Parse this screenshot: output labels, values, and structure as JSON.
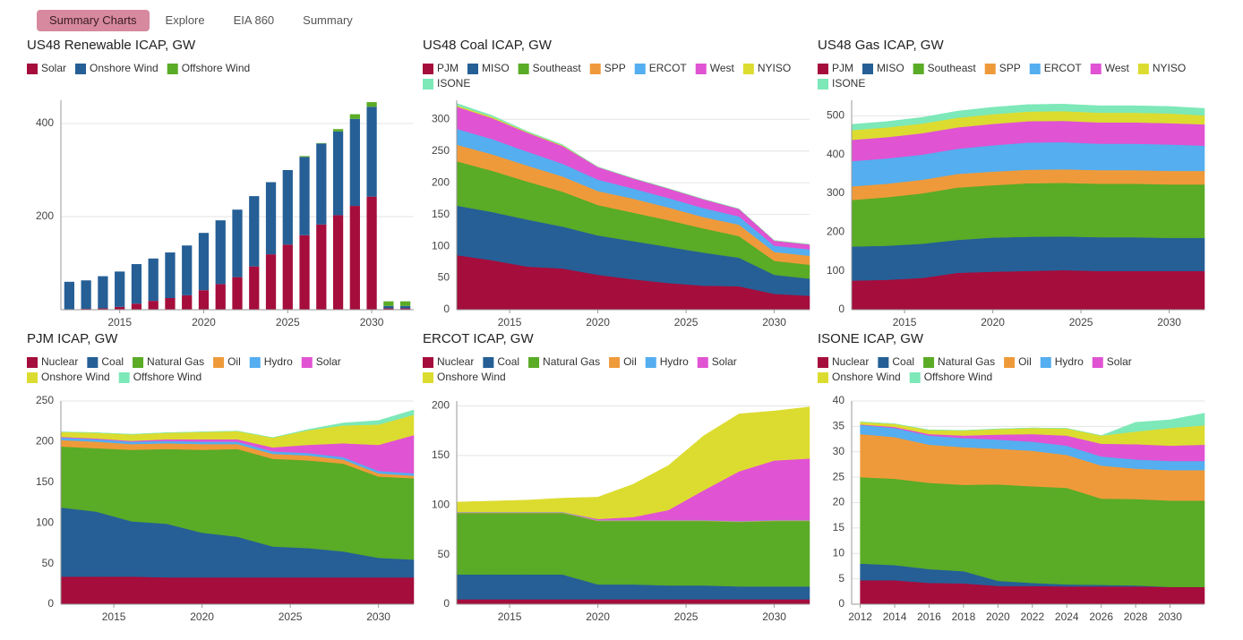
{
  "tabs": [
    "Summary Charts",
    "Explore",
    "EIA 860",
    "Summary"
  ],
  "chart_data": [
    {
      "type": "bar",
      "stacked": true,
      "title": "US48 Renewable ICAP, GW",
      "x": [
        2012,
        2013,
        2014,
        2015,
        2016,
        2017,
        2018,
        2019,
        2020,
        2021,
        2022,
        2023,
        2024,
        2025,
        2026,
        2027,
        2028,
        2029,
        2030,
        2031,
        2032
      ],
      "series": [
        {
          "name": "Solar",
          "color": "#a50d3c",
          "values": [
            1,
            2,
            3,
            6,
            13,
            19,
            25,
            31,
            42,
            55,
            70,
            93,
            119,
            140,
            160,
            183,
            203,
            223,
            243,
            3,
            3
          ]
        },
        {
          "name": "Onshore Wind",
          "color": "#255f96",
          "values": [
            59,
            61,
            69,
            76,
            85,
            91,
            98,
            107,
            123,
            137,
            145,
            151,
            155,
            160,
            168,
            174,
            180,
            187,
            193,
            5,
            5
          ]
        },
        {
          "name": "Offshore Wind",
          "color": "#5aab26",
          "values": [
            0,
            0,
            0,
            0,
            0,
            0,
            0,
            0,
            0,
            0,
            0,
            0,
            0,
            0,
            2,
            1,
            5,
            10,
            10,
            10,
            10
          ]
        }
      ],
      "xlim": [
        2011.5,
        2032.5
      ],
      "xticks": [
        2015,
        2020,
        2025,
        2030
      ],
      "ylim": [
        0,
        450
      ],
      "yticks": [
        200,
        400
      ],
      "grid": true
    },
    {
      "type": "area",
      "stacked": true,
      "title": "US48 Coal ICAP, GW",
      "x": [
        2012,
        2014,
        2016,
        2018,
        2020,
        2022,
        2024,
        2026,
        2028,
        2030,
        2032
      ],
      "series": [
        {
          "name": "PJM",
          "color": "#a50d3c",
          "values": [
            86,
            78,
            68,
            65,
            55,
            48,
            42,
            38,
            37,
            25,
            22
          ]
        },
        {
          "name": "MISO",
          "color": "#255f96",
          "values": [
            78,
            76,
            74,
            66,
            62,
            60,
            57,
            52,
            45,
            30,
            27
          ]
        },
        {
          "name": "Southeast",
          "color": "#5aab26",
          "values": [
            70,
            65,
            60,
            55,
            48,
            45,
            42,
            38,
            34,
            22,
            22
          ]
        },
        {
          "name": "SPP",
          "color": "#ef9a3a",
          "values": [
            26,
            26,
            25,
            24,
            22,
            22,
            20,
            18,
            18,
            14,
            14
          ]
        },
        {
          "name": "ERCOT",
          "color": "#54aef0",
          "values": [
            25,
            24,
            22,
            20,
            18,
            16,
            15,
            14,
            13,
            10,
            10
          ]
        },
        {
          "name": "West",
          "color": "#e053d3",
          "values": [
            35,
            33,
            30,
            28,
            20,
            16,
            15,
            14,
            12,
            8,
            8
          ]
        },
        {
          "name": "NYISO",
          "color": "#dcdc30",
          "values": [
            2,
            2,
            1,
            1,
            0,
            0,
            0,
            0,
            0,
            0,
            0
          ]
        },
        {
          "name": "ISONE",
          "color": "#7de8b8",
          "values": [
            3,
            2,
            1,
            1,
            0,
            0,
            0,
            0,
            0,
            0,
            0
          ]
        }
      ],
      "xlim": [
        2012,
        2032
      ],
      "xticks": [
        2015,
        2020,
        2025,
        2030
      ],
      "ylim": [
        0,
        330
      ],
      "yticks": [
        0,
        50,
        100,
        150,
        200,
        250,
        300
      ],
      "grid": true
    },
    {
      "type": "area",
      "stacked": true,
      "title": "US48 Gas ICAP, GW",
      "x": [
        2012,
        2014,
        2016,
        2018,
        2020,
        2022,
        2024,
        2026,
        2028,
        2030,
        2032
      ],
      "series": [
        {
          "name": "PJM",
          "color": "#a50d3c",
          "values": [
            75,
            77,
            82,
            95,
            98,
            100,
            102,
            100,
            100,
            100,
            100
          ]
        },
        {
          "name": "MISO",
          "color": "#255f96",
          "values": [
            88,
            88,
            88,
            85,
            88,
            88,
            87,
            87,
            87,
            85,
            85
          ]
        },
        {
          "name": "Southeast",
          "color": "#5aab26",
          "values": [
            120,
            125,
            130,
            135,
            135,
            138,
            138,
            138,
            138,
            138,
            138
          ]
        },
        {
          "name": "SPP",
          "color": "#ef9a3a",
          "values": [
            35,
            35,
            35,
            35,
            35,
            35,
            35,
            35,
            35,
            35,
            35
          ]
        },
        {
          "name": "ERCOT",
          "color": "#54aef0",
          "values": [
            65,
            65,
            65,
            65,
            68,
            70,
            70,
            68,
            68,
            68,
            65
          ]
        },
        {
          "name": "West",
          "color": "#e053d3",
          "values": [
            55,
            55,
            55,
            55,
            55,
            55,
            55,
            55,
            55,
            55,
            55
          ]
        },
        {
          "name": "NYISO",
          "color": "#dcdc30",
          "values": [
            25,
            25,
            25,
            25,
            25,
            25,
            25,
            25,
            25,
            25,
            23
          ]
        },
        {
          "name": "ISONE",
          "color": "#7de8b8",
          "values": [
            15,
            15,
            16,
            17,
            18,
            18,
            18,
            18,
            18,
            18,
            18
          ]
        }
      ],
      "xlim": [
        2012,
        2032
      ],
      "xticks": [
        2015,
        2020,
        2025,
        2030
      ],
      "ylim": [
        0,
        540
      ],
      "yticks": [
        0,
        100,
        200,
        300,
        400,
        500
      ],
      "grid": true
    },
    {
      "type": "area",
      "stacked": true,
      "title": "PJM ICAP, GW",
      "x": [
        2012,
        2014,
        2016,
        2018,
        2020,
        2022,
        2024,
        2026,
        2028,
        2030,
        2032
      ],
      "series": [
        {
          "name": "Nuclear",
          "color": "#a50d3c",
          "values": [
            34,
            34,
            34,
            33,
            33,
            33,
            33,
            33,
            33,
            33,
            33
          ]
        },
        {
          "name": "Coal",
          "color": "#255f96",
          "values": [
            85,
            80,
            68,
            66,
            55,
            50,
            38,
            36,
            32,
            24,
            22
          ]
        },
        {
          "name": "Natural Gas",
          "color": "#5aab26",
          "values": [
            75,
            78,
            88,
            92,
            102,
            108,
            108,
            108,
            108,
            100,
            100
          ]
        },
        {
          "name": "Oil",
          "color": "#ef9a3a",
          "values": [
            8,
            8,
            7,
            7,
            7,
            6,
            6,
            6,
            5,
            4,
            3
          ]
        },
        {
          "name": "Hydro",
          "color": "#54aef0",
          "values": [
            3,
            3,
            3,
            3,
            3,
            3,
            3,
            3,
            3,
            3,
            3
          ]
        },
        {
          "name": "Solar",
          "color": "#e053d3",
          "values": [
            1,
            1,
            1,
            2,
            3,
            3,
            5,
            10,
            17,
            32,
            47
          ]
        },
        {
          "name": "Onshore Wind",
          "color": "#dcdc30",
          "values": [
            6,
            7,
            8,
            8,
            9,
            10,
            12,
            18,
            22,
            25,
            25
          ]
        },
        {
          "name": "Offshore Wind",
          "color": "#7de8b8",
          "values": [
            0,
            0,
            0,
            0,
            0,
            0,
            0,
            1,
            3,
            5,
            6
          ]
        }
      ],
      "xlim": [
        2012,
        2032
      ],
      "xticks": [
        2015,
        2020,
        2025,
        2030
      ],
      "ylim": [
        0,
        250
      ],
      "yticks": [
        0,
        50,
        100,
        150,
        200,
        250
      ],
      "grid": true
    },
    {
      "type": "area",
      "stacked": true,
      "title": "ERCOT ICAP, GW",
      "x": [
        2012,
        2014,
        2016,
        2018,
        2020,
        2022,
        2024,
        2026,
        2028,
        2030,
        2032
      ],
      "series": [
        {
          "name": "Nuclear",
          "color": "#a50d3c",
          "values": [
            5,
            5,
            5,
            5,
            5,
            5,
            5,
            5,
            5,
            5,
            5
          ]
        },
        {
          "name": "Coal",
          "color": "#255f96",
          "values": [
            25,
            25,
            25,
            25,
            15,
            15,
            14,
            14,
            13,
            13,
            13
          ]
        },
        {
          "name": "Natural Gas",
          "color": "#5aab26",
          "values": [
            62,
            62,
            62,
            62,
            64,
            64,
            65,
            65,
            65,
            66,
            66
          ]
        },
        {
          "name": "Oil",
          "color": "#ef9a3a",
          "values": [
            0.5,
            0.5,
            0.5,
            0.5,
            0.5,
            0.5,
            0.5,
            0.5,
            0.5,
            0.5,
            0.5
          ]
        },
        {
          "name": "Hydro",
          "color": "#54aef0",
          "values": [
            0.5,
            0.5,
            0.5,
            0.5,
            0.5,
            0.5,
            0.5,
            0.5,
            0.5,
            0.5,
            0.5
          ]
        },
        {
          "name": "Solar",
          "color": "#e053d3",
          "values": [
            0,
            0,
            0,
            0,
            1,
            3,
            10,
            30,
            50,
            60,
            62
          ]
        },
        {
          "name": "Onshore Wind",
          "color": "#dcdc30",
          "values": [
            10,
            11,
            12,
            14,
            22,
            33,
            45,
            55,
            58,
            50,
            52
          ]
        }
      ],
      "xlim": [
        2012,
        2032
      ],
      "xticks": [
        2015,
        2020,
        2025,
        2030
      ],
      "ylim": [
        0,
        205
      ],
      "yticks": [
        0,
        50,
        100,
        150,
        200
      ],
      "grid": true
    },
    {
      "type": "area",
      "stacked": true,
      "title": "ISONE ICAP, GW",
      "x": [
        2012,
        2014,
        2016,
        2018,
        2020,
        2022,
        2024,
        2026,
        2028,
        2030,
        2032
      ],
      "series": [
        {
          "name": "Nuclear",
          "color": "#a50d3c",
          "values": [
            4.7,
            4.7,
            4.2,
            4.1,
            3.6,
            3.6,
            3.5,
            3.5,
            3.5,
            3.4,
            3.4
          ]
        },
        {
          "name": "Coal",
          "color": "#255f96",
          "values": [
            3.3,
            3.0,
            2.7,
            2.4,
            1.0,
            0.6,
            0.4,
            0.3,
            0.2,
            0,
            0
          ]
        },
        {
          "name": "Natural Gas",
          "color": "#5aab26",
          "values": [
            17,
            17,
            17,
            17,
            19,
            19,
            19,
            17,
            17,
            17,
            17
          ]
        },
        {
          "name": "Oil",
          "color": "#ef9a3a",
          "values": [
            8.5,
            8.2,
            7.5,
            7.4,
            7,
            7,
            6.5,
            6.5,
            6,
            6,
            6
          ]
        },
        {
          "name": "Hydro",
          "color": "#54aef0",
          "values": [
            1.8,
            1.8,
            1.8,
            1.8,
            1.8,
            1.8,
            1.8,
            1.8,
            1.8,
            1.8,
            1.8
          ]
        },
        {
          "name": "Solar",
          "color": "#e053d3",
          "values": [
            0.1,
            0.2,
            0.3,
            0.5,
            1,
            1.5,
            2,
            2.5,
            3,
            3,
            3.2
          ]
        },
        {
          "name": "Onshore Wind",
          "color": "#dcdc30",
          "values": [
            0.5,
            0.6,
            0.8,
            1,
            1.1,
            1.2,
            1.4,
            1.6,
            2.5,
            3.5,
            3.8
          ]
        },
        {
          "name": "Offshore Wind",
          "color": "#7de8b8",
          "values": [
            0,
            0,
            0,
            0,
            0,
            0,
            0,
            0,
            1.8,
            1.6,
            2.4
          ]
        }
      ],
      "xlim": [
        2011.5,
        2032
      ],
      "xticks": [
        2012,
        2014,
        2016,
        2018,
        2020,
        2022,
        2024,
        2026,
        2028,
        2030
      ],
      "ylim": [
        0,
        40
      ],
      "yticks": [
        0,
        5,
        10,
        15,
        20,
        25,
        30,
        35,
        40
      ],
      "grid": true
    }
  ]
}
